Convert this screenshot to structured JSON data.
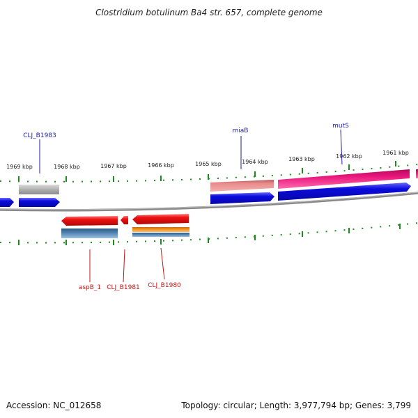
{
  "title": "Clostridium botulinum Ba4 str. 657, complete genome",
  "footer": {
    "accession": "Accession: NC_012658",
    "summary": "Topology: circular; Length: 3,977,794 bp; Genes: 3,799"
  },
  "kbp_labels": [
    "1969 kbp",
    "1968 kbp",
    "1967 kbp",
    "1966 kbp",
    "1965 kbp",
    "1964 kbp",
    "1963 kbp",
    "1962 kbp",
    "1961 kbp"
  ],
  "genes_top": [
    {
      "name": "CLJ_B1983",
      "color": "#1a1aa6"
    },
    {
      "name": "miaB",
      "color": "#1a1aa6"
    },
    {
      "name": "mutS",
      "color": "#1a1aa6"
    }
  ],
  "genes_bottom": [
    {
      "name": "aspB_1",
      "color": "#cc1111"
    },
    {
      "name": "CLJ_B1981",
      "color": "#cc1111"
    },
    {
      "name": "CLJ_B1980",
      "color": "#cc1111"
    }
  ],
  "colors": {
    "backbone": "#808080",
    "forward_cds": "#0b0bdc",
    "reverse_cds": "#ee1111",
    "gene_grey": "#b0b0b0",
    "gene_salmon": "#e88a8a",
    "gene_pink": "#e8147a",
    "steel_blue": "#4c7fae",
    "orange": "#f0901c",
    "tick_green": "#1e8a1e"
  }
}
